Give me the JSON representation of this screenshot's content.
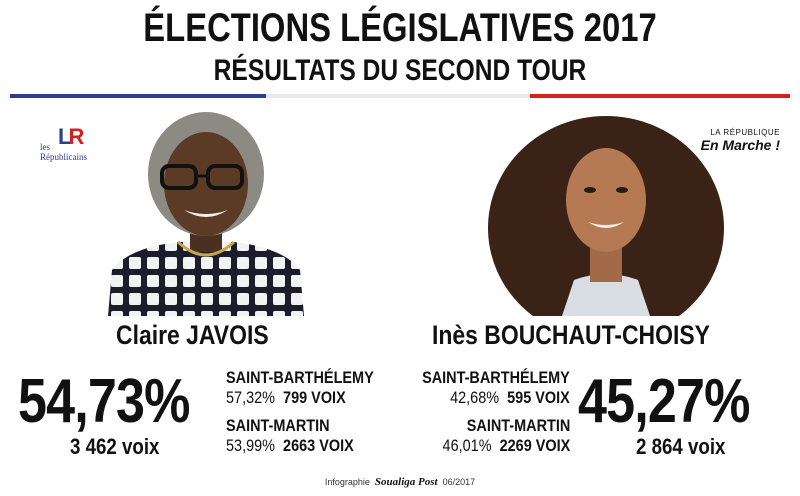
{
  "header": {
    "title": "ÉLECTIONS LÉGISLATIVES 2017",
    "subtitle": "RÉSULTATS DU SECOND TOUR"
  },
  "colors": {
    "blue": "#2b3e8f",
    "white": "#e9e9e9",
    "red": "#d61f1f"
  },
  "left": {
    "party_logo": {
      "mark_l": "L",
      "mark_r": "R",
      "line1": "les",
      "line2": "Républicains"
    },
    "photo_icon": "candidate-photo-icon",
    "name": "Claire JAVOIS",
    "percent": "54,73%",
    "votes": "3 462 voix",
    "regions": [
      {
        "name": "SAINT-BARTHÉLEMY",
        "percent": "57,32%",
        "votes": "799 VOIX"
      },
      {
        "name": "SAINT-MARTIN",
        "percent": "53,99%",
        "votes": "2663 VOIX"
      }
    ]
  },
  "right": {
    "party_logo": {
      "line1": "LA RÉPUBLIQUE",
      "line2": "En Marche !"
    },
    "photo_icon": "candidate-photo-icon",
    "name": "Inès BOUCHAUT-CHOISY",
    "percent": "45,27%",
    "votes": "2 864 voix",
    "regions": [
      {
        "name": "SAINT-BARTHÉLEMY",
        "percent": "42,68%",
        "votes": "595 VOIX"
      },
      {
        "name": "SAINT-MARTIN",
        "percent": "46,01%",
        "votes": "2269 VOIX"
      }
    ]
  },
  "footer": {
    "prefix": "Infographie",
    "brand": "Soualiga Post",
    "date": "06/2017"
  }
}
